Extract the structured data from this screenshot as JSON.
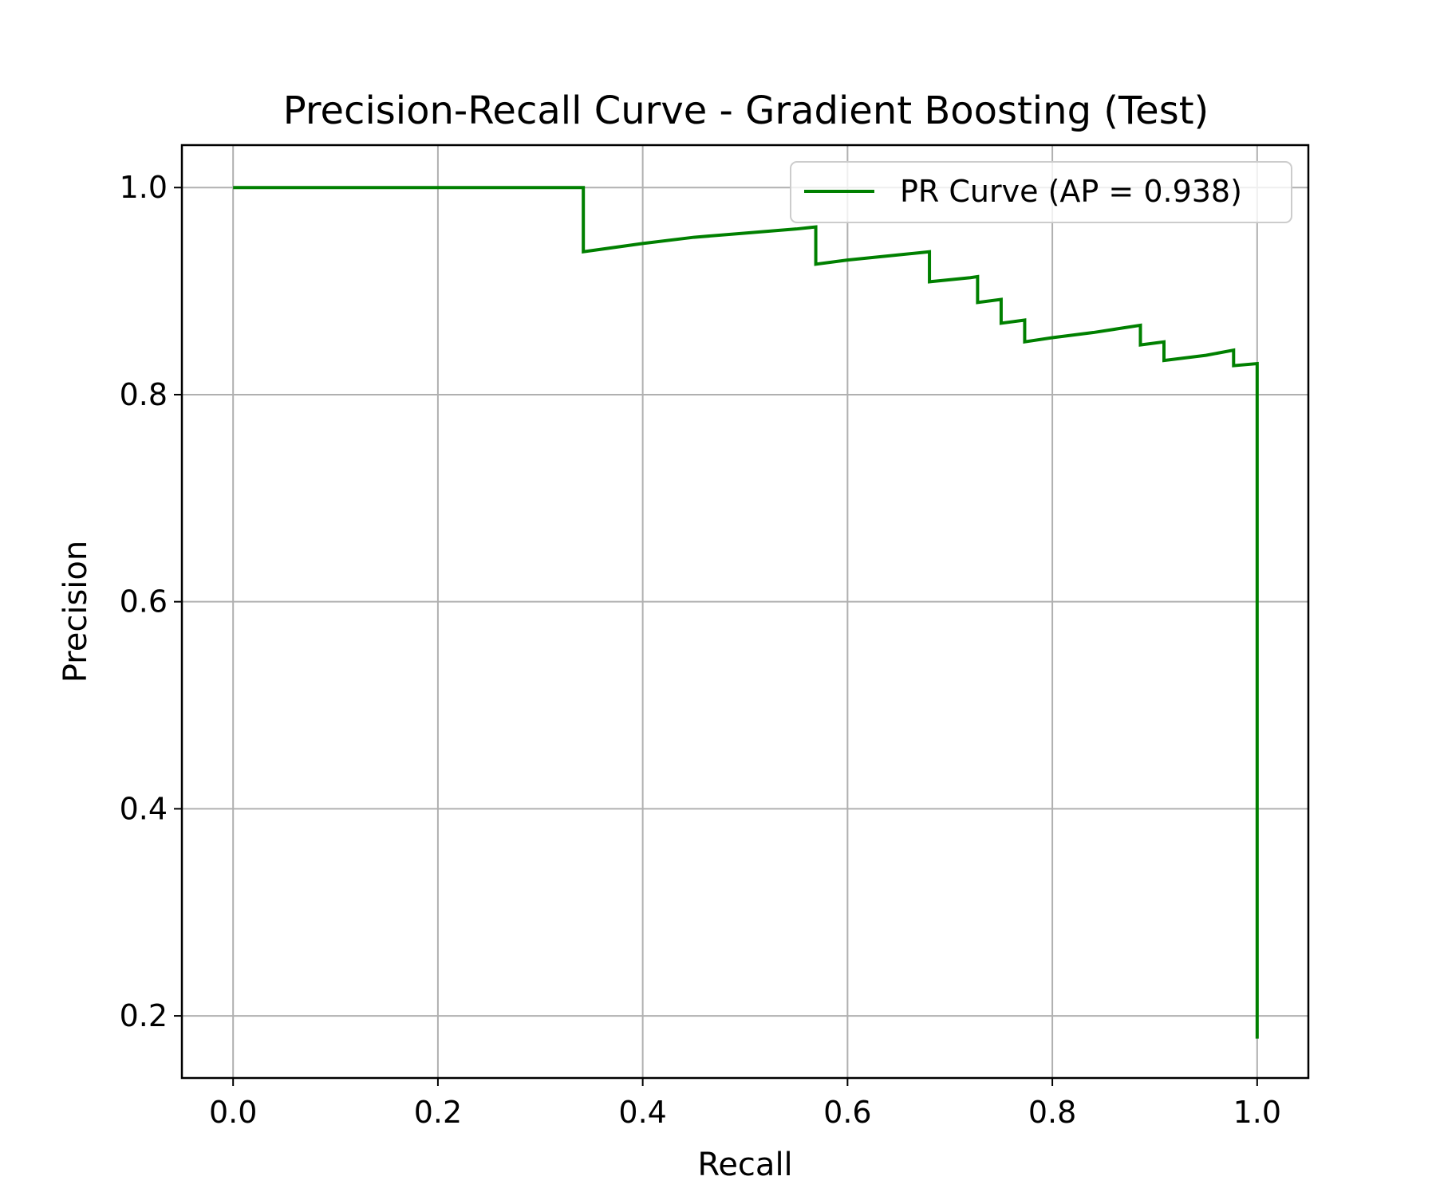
{
  "chart_data": {
    "type": "line",
    "title": "Precision-Recall Curve - Gradient Boosting (Test)",
    "xlabel": "Recall",
    "ylabel": "Precision",
    "xlim": [
      -0.05,
      1.05
    ],
    "ylim": [
      0.14,
      1.041
    ],
    "xticks": [
      0.0,
      0.2,
      0.4,
      0.6,
      0.8,
      1.0
    ],
    "yticks": [
      0.2,
      0.4,
      0.6,
      0.8,
      1.0
    ],
    "xtick_labels": [
      "0.0",
      "0.2",
      "0.4",
      "0.6",
      "0.8",
      "1.0"
    ],
    "ytick_labels": [
      "0.2",
      "0.4",
      "0.6",
      "0.8",
      "1.0"
    ],
    "grid": true,
    "legend_position": "top-right",
    "series": [
      {
        "name": "PR Curve (AP = 0.938)",
        "color": "#008000",
        "x": [
          0.0,
          0.342,
          0.342,
          0.4,
          0.45,
          0.5,
          0.55,
          0.569,
          0.569,
          0.6,
          0.65,
          0.68,
          0.68,
          0.72,
          0.727,
          0.727,
          0.75,
          0.75,
          0.773,
          0.773,
          0.8,
          0.84,
          0.886,
          0.886,
          0.909,
          0.909,
          0.95,
          0.977,
          0.977,
          1.0,
          1.0
        ],
        "y": [
          1.0,
          1.0,
          0.938,
          0.946,
          0.952,
          0.956,
          0.96,
          0.962,
          0.926,
          0.93,
          0.935,
          0.938,
          0.909,
          0.913,
          0.914,
          0.889,
          0.892,
          0.869,
          0.872,
          0.851,
          0.855,
          0.86,
          0.867,
          0.848,
          0.851,
          0.833,
          0.838,
          0.843,
          0.828,
          0.83,
          0.178
        ]
      }
    ]
  }
}
